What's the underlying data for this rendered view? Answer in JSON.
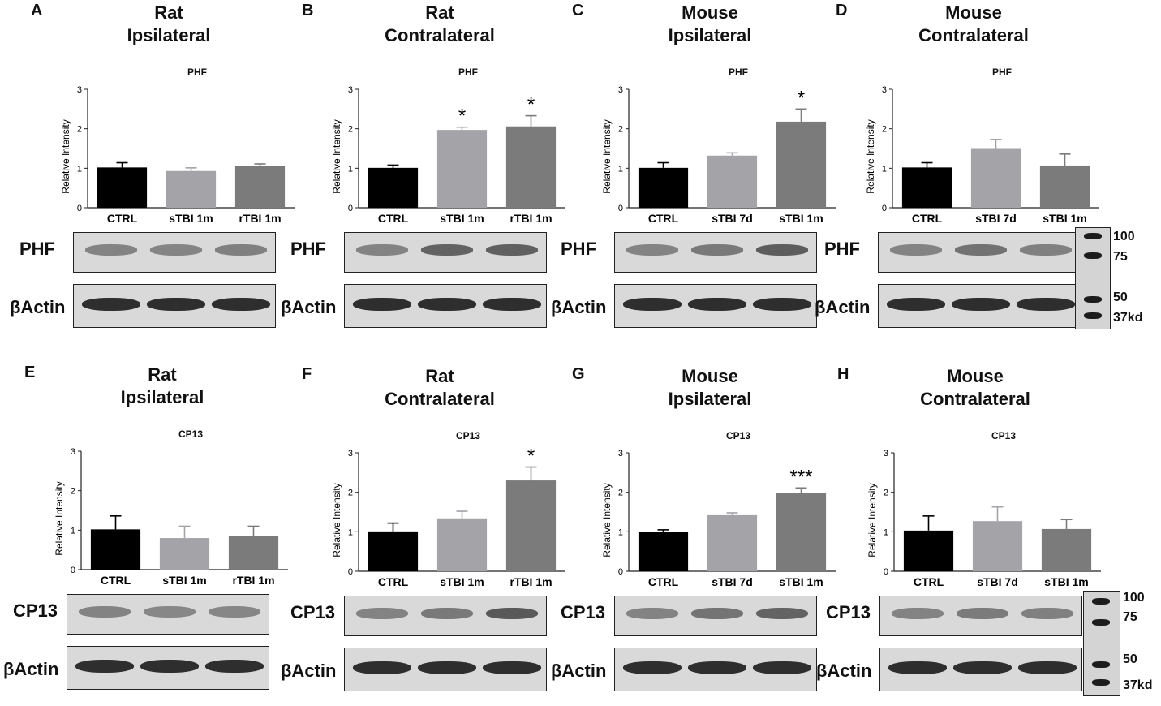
{
  "panels": [
    {
      "letter": "A",
      "title1": "Rat",
      "title2": "Ipsilateral",
      "chart_data": {
        "type": "bar",
        "title": "PHF",
        "ylabel": "Relative Intensity",
        "ylim": [
          0,
          3
        ],
        "yticks": [
          0,
          1,
          2,
          3
        ],
        "categories": [
          "CTRL",
          "sTBI 1m",
          "rTBI 1m"
        ],
        "values": [
          1.02,
          0.93,
          1.05
        ],
        "errors": [
          0.12,
          0.08,
          0.06
        ],
        "sig": [
          "",
          "",
          ""
        ],
        "colors": [
          "#000000",
          "#a3a3a8",
          "#7b7b7b"
        ]
      },
      "blot": {
        "protein": "PHF",
        "control": "βActin"
      }
    },
    {
      "letter": "B",
      "title1": "Rat",
      "title2": "Contralateral",
      "chart_data": {
        "type": "bar",
        "title": "PHF",
        "ylabel": "Relative Intensity",
        "ylim": [
          0,
          3
        ],
        "yticks": [
          0,
          1,
          2,
          3
        ],
        "categories": [
          "CTRL",
          "sTBI 1m",
          "rTBI 1m"
        ],
        "values": [
          1.01,
          1.97,
          2.06
        ],
        "errors": [
          0.07,
          0.07,
          0.27
        ],
        "sig": [
          "",
          "*",
          "*"
        ],
        "colors": [
          "#000000",
          "#a3a3a8",
          "#7b7b7b"
        ]
      },
      "blot": {
        "protein": "PHF",
        "control": "βActin"
      }
    },
    {
      "letter": "C",
      "title1": "Mouse",
      "title2": "Ipsilateral",
      "chart_data": {
        "type": "bar",
        "title": "PHF",
        "ylabel": "Relative Intensity",
        "ylim": [
          0,
          3
        ],
        "yticks": [
          0,
          1,
          2,
          3
        ],
        "categories": [
          "CTRL",
          "sTBI 7d",
          "sTBI 1m"
        ],
        "values": [
          1.01,
          1.32,
          2.18
        ],
        "errors": [
          0.13,
          0.07,
          0.32
        ],
        "sig": [
          "",
          "",
          "*"
        ],
        "colors": [
          "#000000",
          "#a3a3a8",
          "#7b7b7b"
        ]
      },
      "blot": {
        "protein": "PHF",
        "control": "βActin"
      }
    },
    {
      "letter": "D",
      "title1": "Mouse",
      "title2": "Contralateral",
      "chart_data": {
        "type": "bar",
        "title": "PHF",
        "ylabel": "Relative Intensity",
        "ylim": [
          0,
          3
        ],
        "yticks": [
          0,
          1,
          2,
          3
        ],
        "categories": [
          "CTRL",
          "sTBI 7d",
          "sTBI 1m"
        ],
        "values": [
          1.02,
          1.51,
          1.07
        ],
        "errors": [
          0.12,
          0.22,
          0.29
        ],
        "sig": [
          "",
          "",
          ""
        ],
        "colors": [
          "#000000",
          "#a3a3a8",
          "#7b7b7b"
        ]
      },
      "blot": {
        "protein": "PHF",
        "control": "βActin"
      }
    },
    {
      "letter": "E",
      "title1": "Rat",
      "title2": "Ipsilateral",
      "chart_data": {
        "type": "bar",
        "title": "CP13",
        "ylabel": "Relative Intensity",
        "ylim": [
          0,
          3
        ],
        "yticks": [
          0,
          1,
          2,
          3
        ],
        "categories": [
          "CTRL",
          "sTBI 1m",
          "rTBI 1m"
        ],
        "values": [
          1.02,
          0.8,
          0.85
        ],
        "errors": [
          0.34,
          0.3,
          0.25
        ],
        "sig": [
          "",
          "",
          ""
        ],
        "colors": [
          "#000000",
          "#a3a3a8",
          "#7b7b7b"
        ]
      },
      "blot": {
        "protein": "CP13",
        "control": "βActin"
      }
    },
    {
      "letter": "F",
      "title1": "Rat",
      "title2": "Contralateral",
      "chart_data": {
        "type": "bar",
        "title": "CP13",
        "ylabel": "Relative Intensity",
        "ylim": [
          0,
          3
        ],
        "yticks": [
          0,
          1,
          2,
          3
        ],
        "categories": [
          "CTRL",
          "sTBI 1m",
          "rTBI 1m"
        ],
        "values": [
          1.01,
          1.34,
          2.3
        ],
        "errors": [
          0.21,
          0.18,
          0.34
        ],
        "sig": [
          "",
          "",
          "*"
        ],
        "colors": [
          "#000000",
          "#a3a3a8",
          "#7b7b7b"
        ]
      },
      "blot": {
        "protein": "CP13",
        "control": "βActin"
      }
    },
    {
      "letter": "G",
      "title1": "Mouse",
      "title2": "Ipsilateral",
      "chart_data": {
        "type": "bar",
        "title": "CP13",
        "ylabel": "Relative Intensity",
        "ylim": [
          0,
          3
        ],
        "yticks": [
          0,
          1,
          2,
          3
        ],
        "categories": [
          "CTRL",
          "sTBI 7d",
          "sTBI 1m"
        ],
        "values": [
          1.0,
          1.42,
          1.99
        ],
        "errors": [
          0.05,
          0.06,
          0.12
        ],
        "sig": [
          "",
          "",
          "***"
        ],
        "colors": [
          "#000000",
          "#a3a3a8",
          "#7b7b7b"
        ]
      },
      "blot": {
        "protein": "CP13",
        "control": "βActin"
      }
    },
    {
      "letter": "H",
      "title1": "Mouse",
      "title2": "Contralateral",
      "chart_data": {
        "type": "bar",
        "title": "CP13",
        "ylabel": "Relative Intensity",
        "ylim": [
          0,
          3
        ],
        "yticks": [
          0,
          1,
          2,
          3
        ],
        "categories": [
          "CTRL",
          "sTBI 7d",
          "sTBI 1m"
        ],
        "values": [
          1.03,
          1.27,
          1.07
        ],
        "errors": [
          0.37,
          0.36,
          0.24
        ],
        "sig": [
          "",
          "",
          ""
        ],
        "colors": [
          "#000000",
          "#a3a3a8",
          "#7b7b7b"
        ]
      },
      "blot": {
        "protein": "CP13",
        "control": "βActin"
      }
    }
  ],
  "ladder": {
    "top_markers": [
      "100",
      "75",
      "50",
      "37kd"
    ],
    "bottom_markers": [
      "100",
      "75",
      "50",
      "37kd"
    ]
  }
}
